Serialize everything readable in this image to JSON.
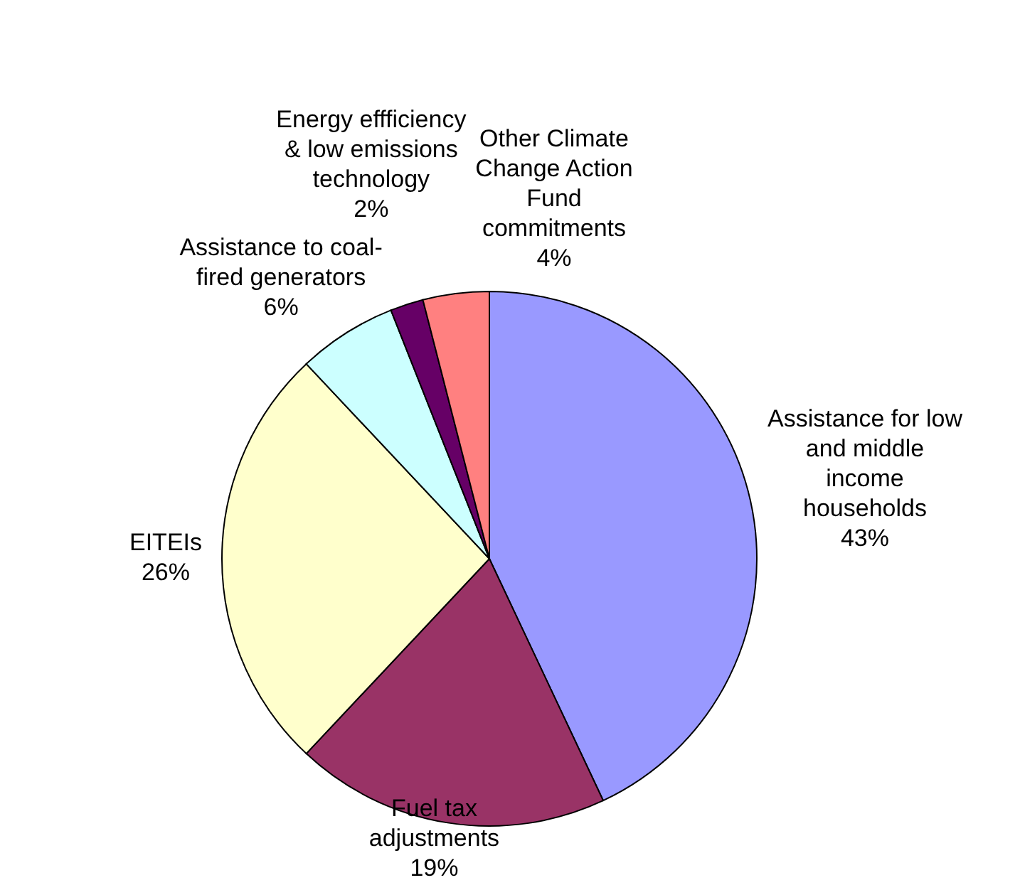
{
  "chart_data": {
    "type": "pie",
    "categories": [
      "Assistance for low\nand middle\nincome\nhouseholds",
      "Fuel tax\nadjustments",
      "EITEIs",
      "Assistance to coal-\nfired generators",
      "Energy effficiency\n& low emissions\ntechnology",
      "Other Climate\nChange Action\nFund\ncommitments"
    ],
    "values": [
      43,
      19,
      26,
      6,
      2,
      4
    ],
    "colors": [
      "#9999ff",
      "#993366",
      "#ffffcc",
      "#ccffff",
      "#660066",
      "#ff8080"
    ],
    "value_labels": [
      "43%",
      "19%",
      "26%",
      "6%",
      "2%",
      "4%"
    ]
  }
}
